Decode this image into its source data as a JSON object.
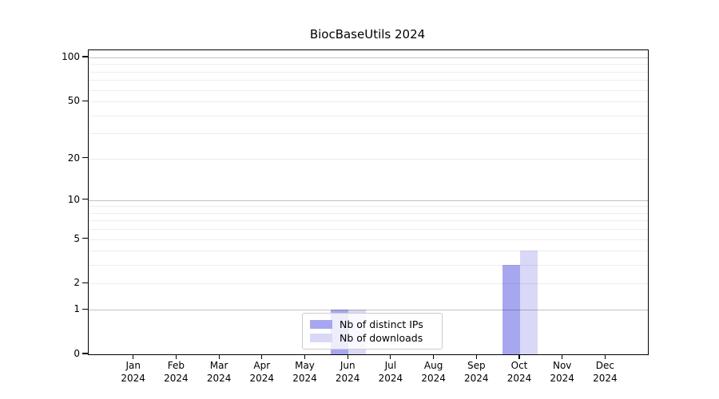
{
  "chart_data": {
    "type": "bar",
    "title": "BiocBaseUtils 2024",
    "categories": [
      "Jan 2024",
      "Feb 2024",
      "Mar 2024",
      "Apr 2024",
      "May 2024",
      "Jun 2024",
      "Jul 2024",
      "Aug 2024",
      "Sep 2024",
      "Oct 2024",
      "Nov 2024",
      "Dec 2024"
    ],
    "series": [
      {
        "name": "Nb of distinct IPs",
        "color": "#a7a7f0",
        "values": [
          0,
          0,
          0,
          0,
          0,
          1,
          0,
          0,
          0,
          3,
          0,
          0
        ]
      },
      {
        "name": "Nb of downloads",
        "color": "#d9d9f7",
        "values": [
          0,
          0,
          0,
          0,
          0,
          1,
          0,
          0,
          0,
          4,
          0,
          0
        ]
      }
    ],
    "xlabel": "",
    "ylabel": "",
    "yscale": "log1p",
    "ylim": [
      0,
      112
    ],
    "y_tick_values": [
      0,
      1,
      2,
      5,
      10,
      20,
      50,
      100
    ],
    "y_tick_labels": [
      "0",
      "1",
      "2",
      "5",
      "10",
      "20",
      "50",
      "100"
    ],
    "y_decade_gridlines": [
      1,
      10,
      100
    ],
    "y_minor_gridlines": [
      2,
      3,
      4,
      5,
      6,
      7,
      8,
      9,
      20,
      30,
      40,
      50,
      60,
      70,
      80,
      90
    ],
    "grid": true,
    "legend_position": "lower center"
  },
  "colors": {
    "axis": "#000000",
    "background": "#ffffff",
    "grid_decade": "#c2c2c2",
    "grid_minor": "#ededed",
    "legend_border": "#cccccc"
  }
}
